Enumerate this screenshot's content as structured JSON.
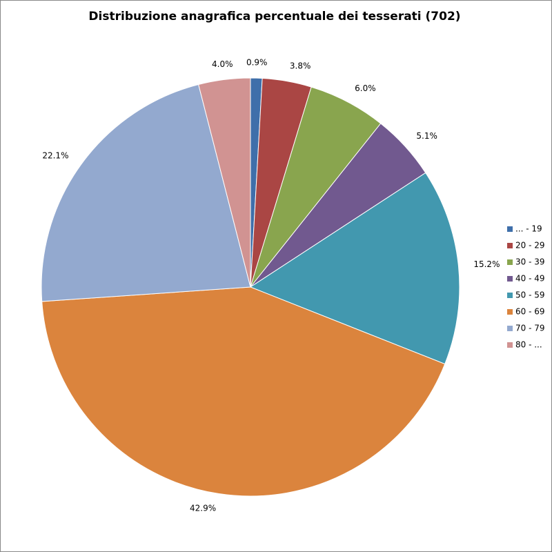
{
  "chart_data": {
    "type": "pie",
    "title": "Distribuzione anagrafica percentuale dei tesserati (702)",
    "categories": [
      "... - 19",
      "20 - 29",
      "30 - 39",
      "40 - 49",
      "50 - 59",
      "60 - 69",
      "70 - 79",
      "80 - ..."
    ],
    "values": [
      0.9,
      3.8,
      6.0,
      5.1,
      15.2,
      42.9,
      22.1,
      4.0
    ],
    "value_labels": [
      "0.9%",
      "3.8%",
      "6.0%",
      "5.1%",
      "15.2%",
      "42.9%",
      "22.1%",
      "4.0%"
    ],
    "colors": [
      "#3f6faa",
      "#aa4644",
      "#89a54e",
      "#71598f",
      "#4298af",
      "#db843d",
      "#93a9cf",
      "#d19392"
    ],
    "legend": "right"
  }
}
